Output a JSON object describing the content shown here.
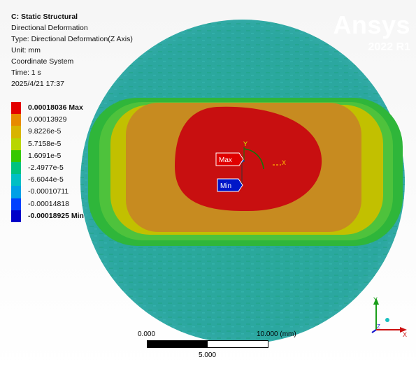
{
  "window": {
    "title": "C: Static Structural",
    "result_name": "Directional Deformation",
    "type_line": "Type: Directional Deformation(Z Axis)",
    "unit_line": "Unit: mm",
    "coord_line": "Coordinate System",
    "time_line": "Time: 1 s",
    "date_line": "2025/4/21 17:37"
  },
  "brand": {
    "name": "Ansys",
    "version": "2022 R1"
  },
  "legend": {
    "max_label": "0.00018036 Max",
    "min_label": "-0.00018925 Min",
    "entries": [
      {
        "label": "0.00018036 Max",
        "color": "#e30000"
      },
      {
        "label": "0.00013929",
        "color": "#e78a00"
      },
      {
        "label": "9.8226e-5",
        "color": "#d8b400"
      },
      {
        "label": "5.7158e-5",
        "color": "#b8d600"
      },
      {
        "label": "1.6091e-5",
        "color": "#36c800"
      },
      {
        "label": "-2.4977e-5",
        "color": "#00c37f"
      },
      {
        "label": "-6.6044e-5",
        "color": "#00bfc4"
      },
      {
        "label": "-0.00010711",
        "color": "#00a0e6"
      },
      {
        "label": "-0.00014818",
        "color": "#0040ff"
      },
      {
        "label": "-0.00018925 Min",
        "color": "#0000c8"
      }
    ]
  },
  "probes": {
    "max_tag": "Max",
    "min_tag": "Min"
  },
  "local_axes": {
    "y": "Y",
    "x": "X"
  },
  "scale_bar": {
    "left_label": "0.000",
    "right_label": "10.000 (mm)",
    "mid_label": "5.000"
  },
  "triad": {
    "y": "Y",
    "x": "X",
    "z": "Z"
  },
  "colors": {
    "red": "#c81010",
    "orange": "#c98a1e",
    "yellow": "#c4c000",
    "green": "#34b830",
    "teal": "#26a9a0",
    "max_tag": "#e00000",
    "min_tag": "#0016c8",
    "brand_text": "#ffffff"
  }
}
